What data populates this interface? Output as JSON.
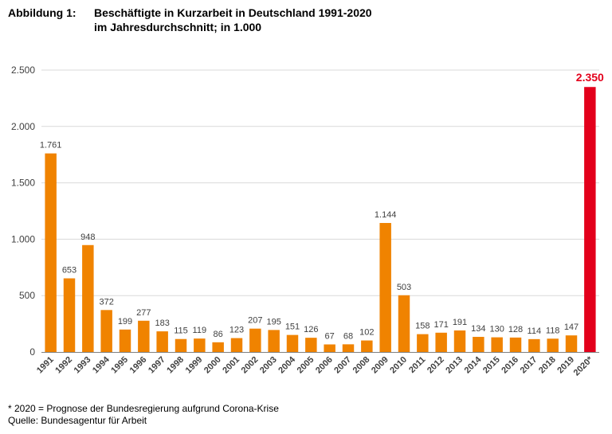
{
  "header": {
    "label": "Abbildung 1:",
    "title": "Beschäftigte in Kurzarbeit in Deutschland 1991-2020",
    "subtitle": "im Jahresdurchschnitt; in 1.000"
  },
  "footnotes": {
    "note": "* 2020 = Prognose der Bundesregierung aufgrund Corona-Krise",
    "source": "Quelle: Bundesagentur für Arbeit"
  },
  "colors": {
    "bar": "#f08300",
    "highlight": "#e3001b",
    "label": "#404040",
    "grid": "#d9d9d9",
    "axis": "#7f7f7f"
  },
  "chart_data": {
    "type": "bar",
    "title": "Beschäftigte in Kurzarbeit in Deutschland 1991-2020",
    "categories": [
      "1991",
      "1992",
      "1993",
      "1994",
      "1995",
      "1996",
      "1997",
      "1998",
      "1999",
      "2000",
      "2001",
      "2002",
      "2003",
      "2004",
      "2005",
      "2006",
      "2007",
      "2008",
      "2009",
      "2010",
      "2011",
      "2012",
      "2013",
      "2014",
      "2015",
      "2016",
      "2017",
      "2018",
      "2019",
      "2020*"
    ],
    "values": [
      1761,
      653,
      948,
      372,
      199,
      277,
      183,
      115,
      119,
      86,
      123,
      207,
      195,
      151,
      126,
      67,
      68,
      102,
      1144,
      503,
      158,
      171,
      191,
      134,
      130,
      128,
      114,
      118,
      147,
      2350
    ],
    "value_labels": [
      "1.761",
      "653",
      "948",
      "372",
      "199",
      "277",
      "183",
      "115",
      "119",
      "86",
      "123",
      "207",
      "195",
      "151",
      "126",
      "67",
      "68",
      "102",
      "1.144",
      "503",
      "158",
      "171",
      "191",
      "134",
      "130",
      "128",
      "114",
      "118",
      "147",
      "2.350"
    ],
    "highlight_index": 29,
    "ylim": [
      0,
      2500
    ],
    "yticks": [
      0,
      500,
      1000,
      1500,
      2000,
      2500
    ],
    "ytick_labels": [
      "0",
      "500",
      "1.000",
      "1.500",
      "2.000",
      "2.500"
    ],
    "xlabel": "",
    "ylabel": "",
    "grid": true,
    "legend": "none"
  }
}
